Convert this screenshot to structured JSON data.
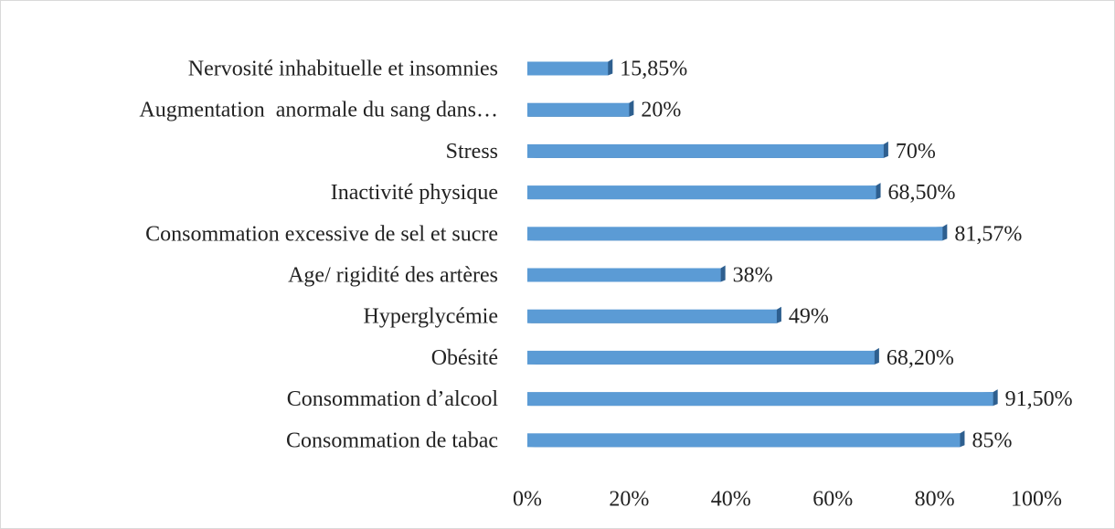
{
  "chart_data": {
    "type": "barh",
    "categories": [
      "Nervosité inhabituelle et insomnies",
      "Augmentation  anormale du sang dans…",
      "Stress",
      "Inactivité physique",
      "Consommation excessive de sel et sucre",
      "Age/ rigidité des artères",
      "Hyperglycémie",
      "Obésité",
      "Consommation d’alcool",
      "Consommation de tabac"
    ],
    "values": [
      15.85,
      20,
      70,
      68.5,
      81.57,
      38,
      49,
      68.2,
      91.5,
      85
    ],
    "value_labels": [
      "15,85%",
      "20%",
      "70%",
      "68,50%",
      "81,57%",
      "38%",
      "49%",
      "68,20%",
      "91,50%",
      "85%"
    ],
    "color": "#5b9bd5",
    "xlim": [
      0,
      100
    ],
    "xticks": [
      {
        "value": 0,
        "label": "0%"
      },
      {
        "value": 20,
        "label": "20%"
      },
      {
        "value": 40,
        "label": "40%"
      },
      {
        "value": 60,
        "label": "60%"
      },
      {
        "value": 80,
        "label": "80%"
      },
      {
        "value": 100,
        "label": "100%"
      }
    ],
    "grid": false
  }
}
